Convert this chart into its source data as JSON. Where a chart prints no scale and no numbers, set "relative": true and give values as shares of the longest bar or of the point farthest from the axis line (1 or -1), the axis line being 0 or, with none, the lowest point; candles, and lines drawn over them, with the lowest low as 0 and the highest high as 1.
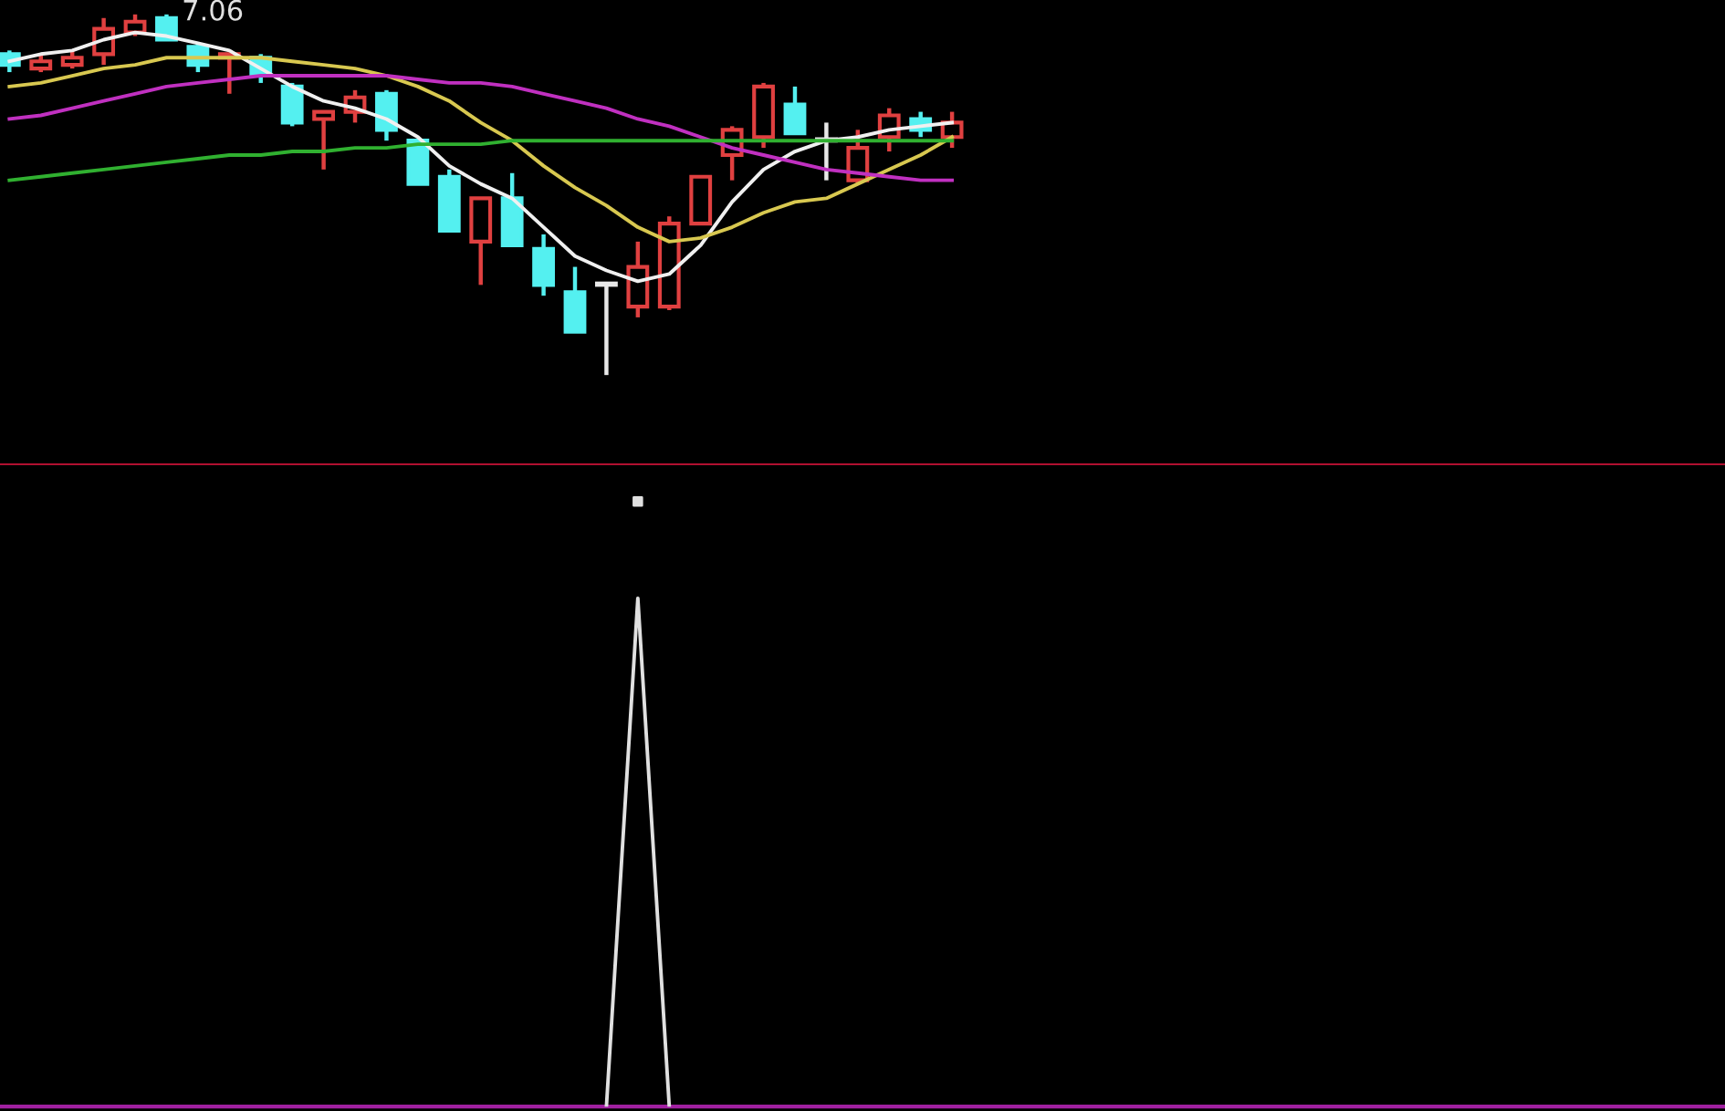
{
  "chart_data": [
    {
      "type": "candlestick",
      "relative": true,
      "categories": [
        null,
        null,
        null,
        null,
        null,
        null,
        null,
        null,
        null,
        null,
        null,
        null,
        null,
        null,
        null,
        null,
        null,
        null,
        null,
        null,
        null,
        null,
        null,
        null,
        null,
        null,
        null,
        null,
        null,
        null,
        null,
        null,
        null,
        null,
        null,
        null,
        null,
        null,
        null,
        null,
        null,
        null,
        null,
        null,
        null,
        null,
        null,
        null,
        null,
        null,
        null,
        null,
        null,
        null,
        null
      ],
      "ohlc": [
        [
          0.89,
          0.9,
          0.84,
          0.86
        ],
        [
          0.85,
          0.89,
          0.84,
          0.87
        ],
        [
          0.86,
          0.9,
          0.85,
          0.88
        ],
        [
          0.89,
          0.99,
          0.86,
          0.96
        ],
        [
          0.95,
          1.0,
          0.94,
          0.98
        ],
        [
          0.99,
          1.0,
          0.93,
          0.93
        ],
        [
          0.91,
          0.92,
          0.84,
          0.86
        ],
        [
          0.88,
          0.89,
          0.78,
          0.89
        ],
        [
          0.88,
          0.89,
          0.81,
          0.83
        ],
        [
          0.8,
          0.81,
          0.69,
          0.7
        ],
        [
          0.71,
          0.73,
          0.57,
          0.73
        ],
        [
          0.73,
          0.79,
          0.7,
          0.77
        ],
        [
          0.78,
          0.79,
          0.65,
          0.68
        ],
        [
          0.65,
          0.65,
          0.53,
          0.53
        ],
        [
          0.55,
          0.57,
          0.4,
          0.4
        ],
        [
          0.37,
          0.49,
          0.25,
          0.49
        ],
        [
          0.49,
          0.56,
          0.36,
          0.36
        ],
        [
          0.35,
          0.39,
          0.22,
          0.25
        ],
        [
          0.23,
          0.3,
          0.12,
          0.12
        ],
        [
          0.25,
          0.25,
          0,
          0.25
        ],
        [
          0.19,
          0.37,
          0.16,
          0.3
        ],
        [
          0.19,
          0.44,
          0.18,
          0.42
        ],
        [
          0.42,
          0.55,
          0.42,
          0.55
        ],
        [
          0.61,
          0.69,
          0.54,
          0.68
        ],
        [
          0.66,
          0.81,
          0.63,
          0.8
        ],
        [
          0.75,
          0.8,
          0.67,
          0.67
        ],
        [
          0.65,
          0.7,
          0.54,
          0.65
        ],
        [
          0.54,
          0.68,
          0.53,
          0.63
        ],
        [
          0.66,
          0.74,
          0.62,
          0.72
        ],
        [
          0.71,
          0.73,
          0.66,
          0.68
        ],
        [
          0.66,
          0.73,
          0.63,
          0.7
        ],
        null,
        null,
        null,
        null,
        null,
        null,
        null,
        null,
        null,
        null,
        null,
        null,
        null,
        null,
        null,
        null,
        null,
        null,
        null,
        null,
        null,
        null,
        null,
        null
      ],
      "colors": [
        "#54f0f0",
        "#e04040",
        "#e04040",
        "#e04040",
        "#e04040",
        "#54f0f0",
        "#54f0f0",
        "#e04040",
        "#54f0f0",
        "#54f0f0",
        "#e04040",
        "#e04040",
        "#54f0f0",
        "#54f0f0",
        "#54f0f0",
        "#e04040",
        "#54f0f0",
        "#54f0f0",
        "#54f0f0",
        "#e8e8e8",
        "#e04040",
        "#e04040",
        "#e04040",
        "#e04040",
        "#e04040",
        "#54f0f0",
        "#e8e8e8",
        "#e04040",
        "#e04040",
        "#54f0f0",
        "#e04040",
        null,
        null,
        null,
        null,
        null,
        null,
        null,
        null,
        null,
        null,
        null,
        null,
        null,
        null,
        null,
        null,
        null,
        null,
        null,
        null,
        null,
        null,
        null,
        null
      ],
      "series": [
        {
          "type": "line",
          "color": "#f0f0f0",
          "values": [
            0.87,
            0.89,
            0.9,
            0.93,
            0.95,
            0.94,
            0.92,
            0.9,
            0.85,
            0.8,
            0.76,
            0.74,
            0.71,
            0.66,
            0.58,
            0.53,
            0.49,
            0.41,
            0.33,
            0.29,
            0.26,
            0.28,
            0.36,
            0.48,
            0.57,
            0.62,
            0.65,
            0.66,
            0.68,
            0.69,
            0.7,
            null,
            null,
            null,
            null,
            null,
            null,
            null,
            null,
            null,
            null,
            null,
            null,
            null,
            null,
            null,
            null,
            null,
            null,
            null,
            null,
            null,
            null,
            null,
            null
          ]
        },
        {
          "type": "line",
          "color": "#d8c850",
          "values": [
            0.8,
            0.81,
            0.83,
            0.85,
            0.86,
            0.88,
            0.88,
            0.88,
            0.88,
            0.87,
            0.86,
            0.85,
            0.83,
            0.8,
            0.76,
            0.7,
            0.65,
            0.58,
            0.52,
            0.47,
            0.41,
            0.37,
            0.38,
            0.41,
            0.45,
            0.48,
            0.49,
            0.53,
            0.57,
            0.61,
            0.66,
            null,
            null,
            null,
            null,
            null,
            null,
            null,
            null,
            null,
            null,
            null,
            null,
            null,
            null,
            null,
            null,
            null,
            null,
            null,
            null,
            null,
            null,
            null,
            null
          ]
        },
        {
          "type": "line",
          "color": "#c030c0",
          "values": [
            0.71,
            0.72,
            0.74,
            0.76,
            0.78,
            0.8,
            0.81,
            0.82,
            0.83,
            0.83,
            0.83,
            0.83,
            0.83,
            0.82,
            0.81,
            0.81,
            0.8,
            0.78,
            0.76,
            0.74,
            0.71,
            0.69,
            0.66,
            0.63,
            0.61,
            0.59,
            0.57,
            0.56,
            0.55,
            0.54,
            0.54,
            null,
            null,
            null,
            null,
            null,
            null,
            null,
            null,
            null,
            null,
            null,
            null,
            null,
            null,
            null,
            null,
            null,
            null,
            null,
            null,
            null,
            null,
            null,
            null
          ]
        },
        {
          "type": "line",
          "color": "#30b030",
          "values": [
            0.54,
            0.55,
            0.56,
            0.57,
            0.58,
            0.59,
            0.6,
            0.61,
            0.61,
            0.62,
            0.62,
            0.63,
            0.63,
            0.64,
            0.64,
            0.64,
            0.65,
            0.65,
            0.65,
            0.65,
            0.65,
            0.65,
            0.65,
            0.65,
            0.65,
            0.65,
            0.65,
            0.65,
            0.65,
            0.65,
            0.65,
            null,
            null,
            null,
            null,
            null,
            null,
            null,
            null,
            null,
            null,
            null,
            null,
            null,
            null,
            null,
            null,
            null,
            null,
            null,
            null,
            null,
            null,
            null,
            null
          ]
        }
      ],
      "annotations": [
        "7.06"
      ]
    },
    {
      "type": "line",
      "relative": true,
      "categories": [
        null,
        null,
        null,
        null,
        null,
        null,
        null,
        null,
        null,
        null,
        null,
        null,
        null,
        null,
        null,
        null,
        null,
        null,
        null,
        null,
        null,
        null,
        null,
        null,
        null,
        null,
        null,
        null,
        null,
        null,
        null,
        null,
        null,
        null,
        null,
        null,
        null,
        null,
        null,
        null,
        null,
        null,
        null,
        null,
        null,
        null,
        null,
        null,
        null,
        null,
        null,
        null,
        null,
        null,
        null
      ],
      "series": [
        {
          "type": "line",
          "color": "#e0e0e0",
          "values": [
            null,
            null,
            null,
            null,
            null,
            null,
            null,
            null,
            null,
            null,
            null,
            null,
            null,
            null,
            null,
            null,
            null,
            null,
            null,
            0,
            0.84,
            0,
            null,
            null,
            null,
            null,
            null,
            null,
            null,
            null,
            null,
            null,
            null,
            null,
            null,
            null,
            null,
            null,
            null,
            null,
            null,
            null,
            null,
            null,
            null,
            null,
            null,
            null,
            null,
            null,
            null,
            null,
            null,
            null,
            null
          ]
        },
        {
          "type": "scatter",
          "color": "#e0e0e0",
          "values": [
            null,
            null,
            null,
            null,
            null,
            null,
            null,
            null,
            null,
            null,
            null,
            null,
            null,
            null,
            null,
            null,
            null,
            null,
            null,
            null,
            1,
            null,
            null,
            null,
            null,
            null,
            null,
            null,
            null,
            null,
            null,
            null,
            null,
            null,
            null,
            null,
            null,
            null,
            null,
            null,
            null,
            null,
            null,
            null,
            null,
            null,
            null,
            null,
            null,
            null,
            null,
            null,
            null,
            null,
            null
          ]
        }
      ]
    }
  ]
}
